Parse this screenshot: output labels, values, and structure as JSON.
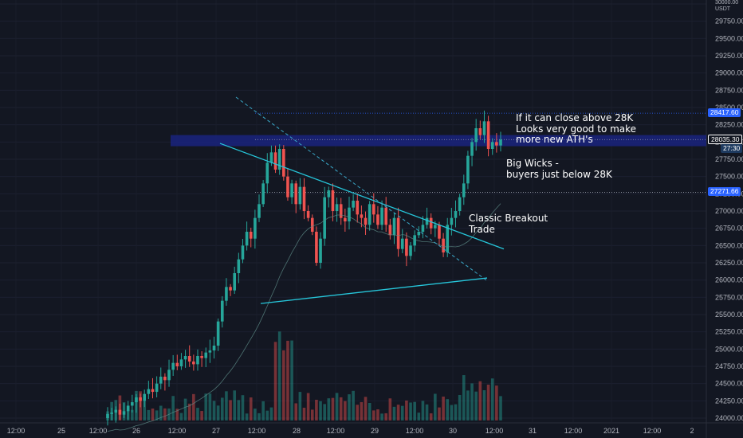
{
  "chart_data": {
    "type": "candlestick",
    "symbol_currency": "USDT",
    "y_axis": {
      "range": [
        23900,
        30250
      ],
      "ticks": [
        "24000.00",
        "24250.00",
        "24500.00",
        "24750.00",
        "25000.00",
        "25250.00",
        "25500.00",
        "25750.00",
        "26000.00",
        "26250.00",
        "26500.00",
        "26750.00",
        "27000.00",
        "27250.00",
        "27500.00",
        "27750.00",
        "28000.00",
        "28250.00",
        "28500.00",
        "28750.00",
        "29000.00",
        "29250.00",
        "29500.00",
        "29750.00",
        "30000.00"
      ],
      "top_label": "30000.00"
    },
    "x_axis": {
      "ticks": [
        "12:00",
        "25",
        "12:00",
        "26",
        "12:00",
        "27",
        "12:00",
        "28",
        "12:00",
        "29",
        "12:00",
        "30",
        "12:00",
        "31",
        "12:00",
        "2021",
        "12:00",
        "2"
      ]
    },
    "price_labels": [
      {
        "value": "28417.60",
        "color": "#2962ff"
      },
      {
        "value": "28035.30",
        "color": "#131722",
        "border": "#ffffff"
      },
      {
        "value": "27:30",
        "color": "#1e3a5f"
      },
      {
        "value": "27271.66",
        "color": "#2962ff"
      }
    ],
    "candle_closes_approx": [
      24060,
      24080,
      24120,
      24050,
      24100,
      24180,
      24230,
      24300,
      24250,
      24350,
      24420,
      24380,
      24500,
      24600,
      24550,
      24700,
      24800,
      24750,
      24850,
      24900,
      24820,
      24780,
      24900,
      24870,
      24950,
      24980,
      25050,
      25400,
      25700,
      25900,
      25850,
      26100,
      26300,
      26500,
      26700,
      26600,
      26900,
      27100,
      27400,
      27700,
      27850,
      27600,
      27900,
      27500,
      27200,
      27400,
      27100,
      27350,
      27000,
      26900,
      26700,
      26250,
      26600,
      27200,
      27300,
      27000,
      27100,
      26900,
      26850,
      27050,
      27150,
      26950,
      26900,
      26800,
      27100,
      26950,
      26800,
      27050,
      26800,
      26650,
      26900,
      26450,
      26600,
      26350,
      26500,
      26650,
      26700,
      26800,
      26900,
      26750,
      26800,
      26600,
      26400,
      26800,
      26900,
      27000,
      27200,
      27400,
      27800,
      28000,
      28200,
      28100,
      28300,
      27900,
      28000,
      27950,
      28035
    ],
    "support_resistance": [
      28417.6,
      28035.3,
      27271.66
    ],
    "annotations": [
      {
        "text": "If it can close above 28K Looks very good to make more new ATH's"
      },
      {
        "text": "Big Wicks - buyers just below 28K"
      },
      {
        "text": "Classic Breakout Trade"
      }
    ]
  },
  "annotations_text": {
    "note1": [
      "If it can close above 28K",
      "Looks very good to make",
      "more new ATH's"
    ],
    "note2": [
      "Big Wicks -",
      "buyers just below 28K"
    ],
    "note3": [
      "Classic Breakout",
      "Trade"
    ]
  },
  "colors": {
    "up": "#26a69a",
    "down": "#ef5350",
    "trendline": "#26c6da",
    "zone": "#1a237e"
  }
}
